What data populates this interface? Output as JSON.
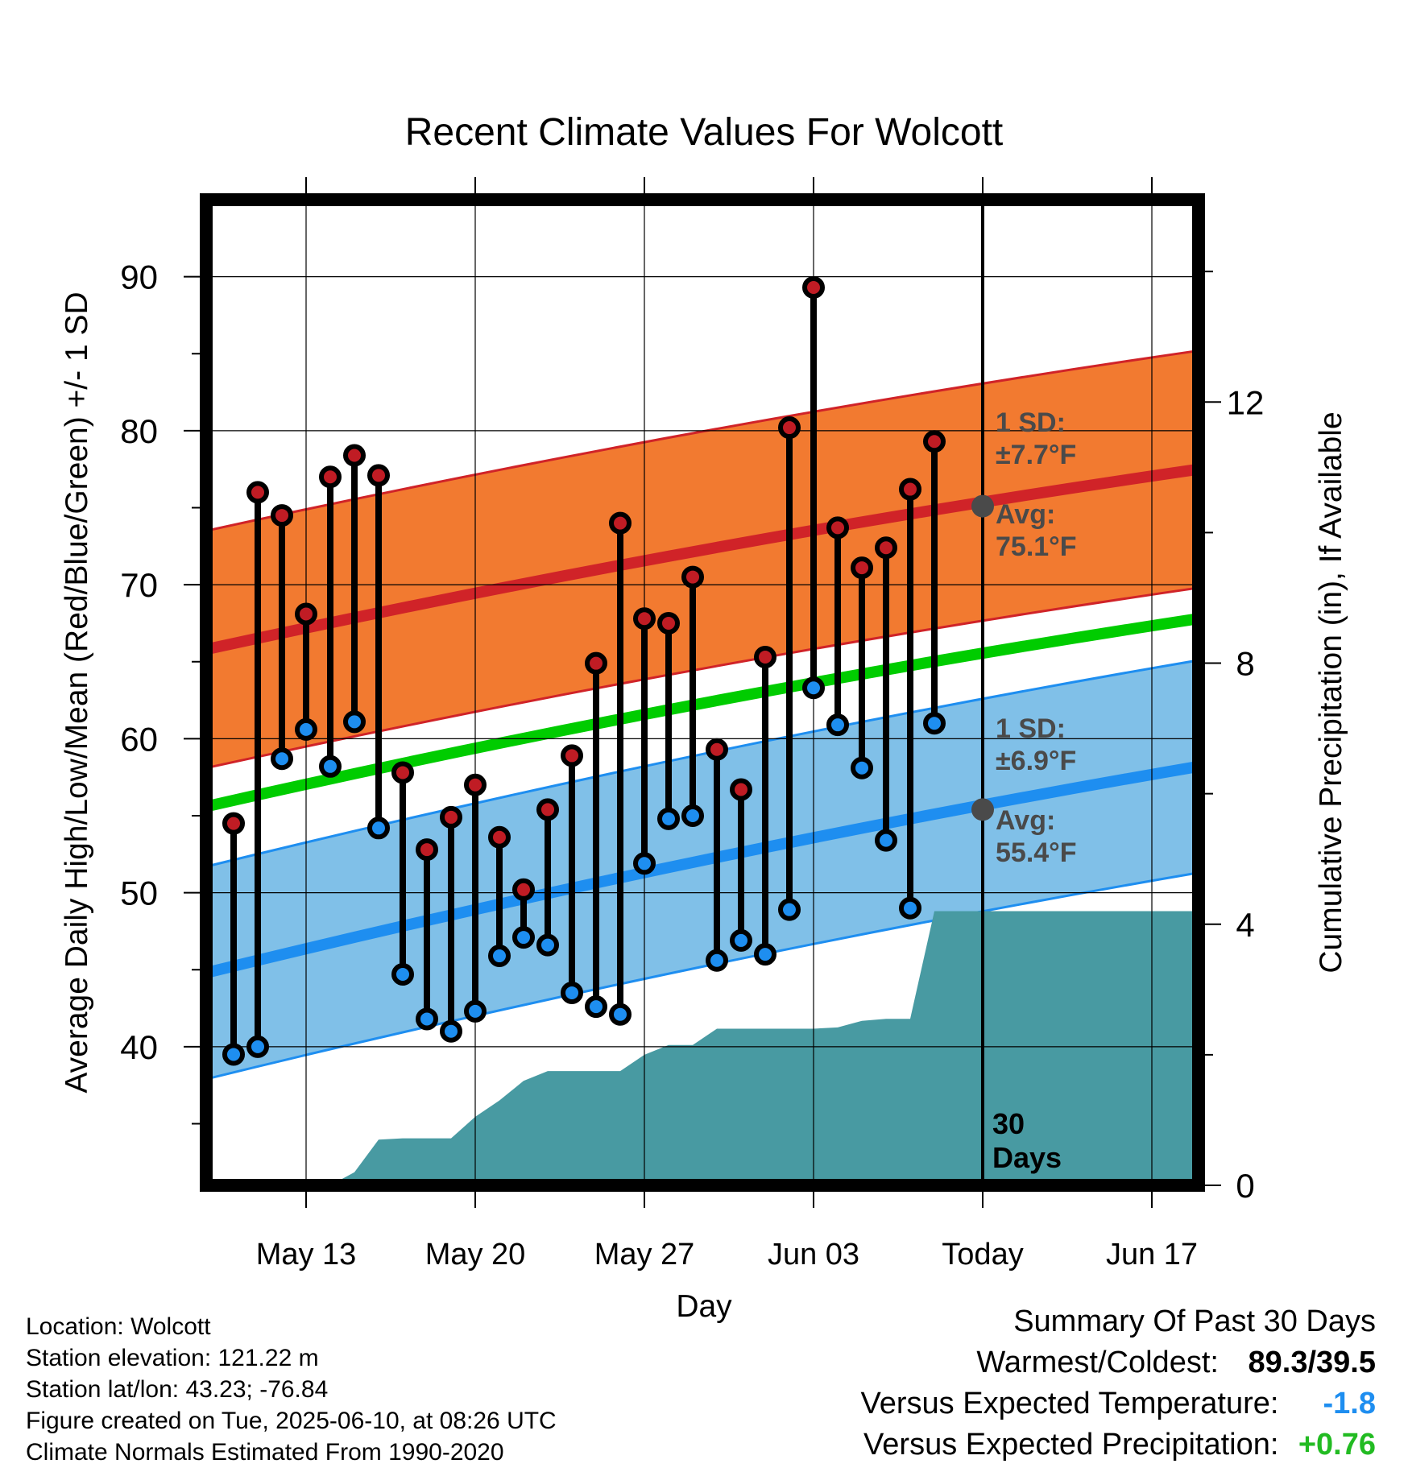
{
  "chart_data": {
    "type": "line",
    "title": "Recent Climate Values For Wolcott",
    "xlabel": "Day",
    "ylabel": "Average Daily High/Low/Mean (Red/Blue/Green) +/- 1 SD",
    "y2label": "Cumulative Precipitation (in), If Available",
    "x_range": [
      "2025-05-10",
      "2025-06-20"
    ],
    "ylim": [
      31,
      95
    ],
    "y2lim": [
      0,
      15.1
    ],
    "x_ticks": [
      {
        "date": "2025-05-13",
        "label": "May 13"
      },
      {
        "date": "2025-05-20",
        "label": "May 20"
      },
      {
        "date": "2025-05-27",
        "label": "May 27"
      },
      {
        "date": "2025-06-03",
        "label": "Jun 03"
      },
      {
        "date": "2025-06-10",
        "label": "Today"
      },
      {
        "date": "2025-06-17",
        "label": "Jun 17"
      }
    ],
    "y_ticks": [
      "40",
      "50",
      "60",
      "70",
      "80",
      "90"
    ],
    "y2_ticks": [
      "0",
      "4",
      "8",
      "12"
    ],
    "grid": true,
    "today_date": "2025-06-10",
    "today_marker_label_line1": "30",
    "today_marker_label_line2": "Days",
    "normal_high": {
      "start": 65.8,
      "end": 77.5,
      "sd_label_line1": "1 SD:",
      "sd_label_line2": "±7.7°F",
      "avg_label_line1": "Avg:",
      "avg_label_line2": "75.1°F",
      "avg_today": 75.1,
      "sd": 7.7
    },
    "normal_low": {
      "start": 44.8,
      "end": 58.2,
      "sd_label_line1": "1 SD:",
      "sd_label_line2": "±6.9°F",
      "avg_label_line1": "Avg:",
      "avg_label_line2": "55.4°F",
      "avg_today": 55.4,
      "sd": 6.9
    },
    "normal_mean": {
      "start": 55.6,
      "end": 67.8
    },
    "daily": [
      {
        "date": "2025-05-10",
        "high": 54.5,
        "low": 39.5
      },
      {
        "date": "2025-05-11",
        "high": 76.0,
        "low": 40.0
      },
      {
        "date": "2025-05-12",
        "high": 74.5,
        "low": 58.7
      },
      {
        "date": "2025-05-13",
        "high": 68.1,
        "low": 60.6
      },
      {
        "date": "2025-05-14",
        "high": 77.0,
        "low": 58.2
      },
      {
        "date": "2025-05-15",
        "high": 78.4,
        "low": 61.1
      },
      {
        "date": "2025-05-16",
        "high": 77.1,
        "low": 54.2
      },
      {
        "date": "2025-05-17",
        "high": 57.8,
        "low": 44.7
      },
      {
        "date": "2025-05-18",
        "high": 52.8,
        "low": 41.8
      },
      {
        "date": "2025-05-19",
        "high": 54.9,
        "low": 41.0
      },
      {
        "date": "2025-05-20",
        "high": 57.0,
        "low": 42.3
      },
      {
        "date": "2025-05-21",
        "high": 53.6,
        "low": 45.9
      },
      {
        "date": "2025-05-22",
        "high": 50.2,
        "low": 47.1
      },
      {
        "date": "2025-05-23",
        "high": 55.4,
        "low": 46.6
      },
      {
        "date": "2025-05-24",
        "high": 58.9,
        "low": 43.5
      },
      {
        "date": "2025-05-25",
        "high": 64.9,
        "low": 42.6
      },
      {
        "date": "2025-05-26",
        "high": 74.0,
        "low": 42.1
      },
      {
        "date": "2025-05-27",
        "high": 67.8,
        "low": 51.9
      },
      {
        "date": "2025-05-28",
        "high": 67.5,
        "low": 54.8
      },
      {
        "date": "2025-05-29",
        "high": 70.5,
        "low": 55.0
      },
      {
        "date": "2025-05-30",
        "high": 59.3,
        "low": 45.6
      },
      {
        "date": "2025-05-31",
        "high": 56.7,
        "low": 46.9
      },
      {
        "date": "2025-06-01",
        "high": 65.3,
        "low": 46.0
      },
      {
        "date": "2025-06-02",
        "high": 80.2,
        "low": 48.9
      },
      {
        "date": "2025-06-03",
        "high": 89.3,
        "low": 63.3
      },
      {
        "date": "2025-06-04",
        "high": 73.7,
        "low": 60.9
      },
      {
        "date": "2025-06-05",
        "high": 71.1,
        "low": 58.1
      },
      {
        "date": "2025-06-06",
        "high": 72.4,
        "low": 53.4
      },
      {
        "date": "2025-06-07",
        "high": 76.2,
        "low": 49.0
      },
      {
        "date": "2025-06-08",
        "high": 79.3,
        "low": 61.0
      }
    ],
    "precip_cumulative": [
      {
        "date": "2025-05-10",
        "value": 0.0
      },
      {
        "date": "2025-05-14",
        "value": 0.0
      },
      {
        "date": "2025-05-15",
        "value": 0.2
      },
      {
        "date": "2025-05-16",
        "value": 0.7
      },
      {
        "date": "2025-05-17",
        "value": 0.72
      },
      {
        "date": "2025-05-18",
        "value": 0.72
      },
      {
        "date": "2025-05-19",
        "value": 0.72
      },
      {
        "date": "2025-05-20",
        "value": 1.05
      },
      {
        "date": "2025-05-21",
        "value": 1.3
      },
      {
        "date": "2025-05-22",
        "value": 1.6
      },
      {
        "date": "2025-05-23",
        "value": 1.75
      },
      {
        "date": "2025-05-24",
        "value": 1.75
      },
      {
        "date": "2025-05-25",
        "value": 1.75
      },
      {
        "date": "2025-05-26",
        "value": 1.75
      },
      {
        "date": "2025-05-27",
        "value": 2.0
      },
      {
        "date": "2025-05-28",
        "value": 2.15
      },
      {
        "date": "2025-05-29",
        "value": 2.15
      },
      {
        "date": "2025-05-30",
        "value": 2.4
      },
      {
        "date": "2025-05-31",
        "value": 2.4
      },
      {
        "date": "2025-06-01",
        "value": 2.4
      },
      {
        "date": "2025-06-02",
        "value": 2.4
      },
      {
        "date": "2025-06-03",
        "value": 2.4
      },
      {
        "date": "2025-06-04",
        "value": 2.42
      },
      {
        "date": "2025-06-05",
        "value": 2.52
      },
      {
        "date": "2025-06-06",
        "value": 2.55
      },
      {
        "date": "2025-06-07",
        "value": 2.55
      },
      {
        "date": "2025-06-08",
        "value": 4.2
      },
      {
        "date": "2025-06-20",
        "value": 4.2
      }
    ],
    "colors": {
      "high_band": "#f27a30",
      "high_line": "#d02328",
      "low_band": "#80c0e8",
      "low_line": "#1e8ef0",
      "mean_line": "#00cc00",
      "precip": "#489aa2",
      "high_dot": "#c01c24",
      "low_dot": "#1e8ef0",
      "annotation": "#4a4a4a"
    }
  },
  "footer": {
    "location": "Location: Wolcott",
    "elevation": "Station elevation: 121.22 m",
    "latlon": "Station lat/lon: 43.23; -76.84",
    "created": "Figure created on Tue, 2025-06-10, at 08:26 UTC",
    "normals": "Climate Normals Estimated From 1990-2020"
  },
  "summary": {
    "heading": "Summary Of Past 30 Days",
    "warmest_label": "Warmest/Coldest:",
    "warmest_value": "89.3/39.5",
    "temp_label": "Versus Expected Temperature:",
    "temp_value": "-1.8",
    "temp_color": "#1e8ef0",
    "precip_label": "Versus Expected Precipitation:",
    "precip_value": "+0.76",
    "precip_color": "#22bb22"
  }
}
